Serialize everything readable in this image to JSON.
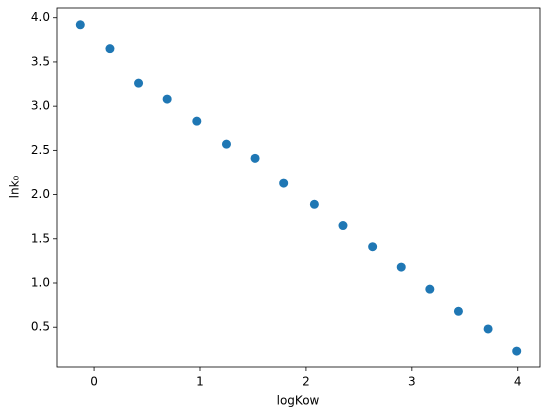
{
  "chart_data": {
    "type": "scatter",
    "xlabel": "logKow",
    "ylabel": "lnk₀",
    "color": "#1f77b4",
    "x": [
      -0.13,
      0.15,
      0.42,
      0.69,
      0.97,
      1.25,
      1.52,
      1.79,
      2.08,
      2.35,
      2.63,
      2.9,
      3.17,
      3.44,
      3.72,
      3.99
    ],
    "values": [
      3.92,
      3.65,
      3.26,
      3.08,
      2.83,
      2.57,
      2.41,
      2.13,
      1.89,
      1.65,
      1.41,
      1.18,
      0.93,
      0.68,
      0.48,
      0.23
    ],
    "xlim": [
      -0.35,
      4.21
    ],
    "ylim": [
      0.05,
      4.11
    ],
    "xticks": [
      0,
      1,
      2,
      3,
      4
    ],
    "yticks": [
      0.5,
      {
        "value": 1,
        "label": "1.0"
      },
      1.5,
      {
        "value": 2,
        "label": "2.0"
      },
      2.5,
      {
        "value": 3,
        "label": "3.0"
      },
      3.5,
      {
        "value": 4,
        "label": "4.0"
      }
    ]
  }
}
